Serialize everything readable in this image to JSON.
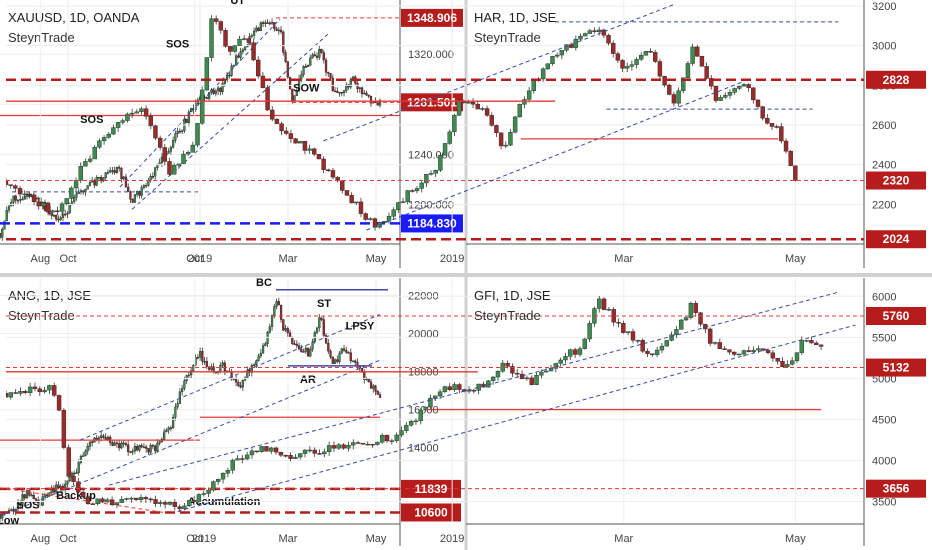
{
  "colors": {
    "up": "#3d8b4f",
    "down": "#9b2a2a",
    "dark_red": "#b71c1c",
    "red": "#e53935",
    "blue": "#3949ab",
    "blue_light": "#5c6bc0",
    "axis_text": "#444444",
    "grid": "#eeeeee",
    "divider": "#d0d0d0"
  },
  "chart_data": [
    {
      "type": "candlestick",
      "symbol_line": "XAUUSD, 1D, OANDA",
      "watermark": "SteynTrade",
      "x_labels": [
        {
          "t": 0.17,
          "label": "Oct"
        },
        {
          "t": 0.5,
          "label": "2019"
        },
        {
          "t": 0.72,
          "label": "Mar"
        },
        {
          "t": 0.94,
          "label": "May"
        }
      ],
      "y_ticks": [
        1200,
        1240,
        1280,
        1320
      ],
      "y_tick_labels": [
        "1200.000",
        "1240.000",
        "1280.000",
        "1320.000"
      ],
      "ylim": [
        1170,
        1360
      ],
      "price_tags": [
        {
          "label": "1348.906",
          "value": 1348.906,
          "color": "#b71c1c"
        },
        {
          "label": "1281.501",
          "value": 1281.501,
          "color": "#b71c1c"
        },
        {
          "label": "1184.830",
          "value": 1184.83,
          "color": "#1a1aff"
        }
      ],
      "anchors": [
        [
          0,
          1177
        ],
        [
          0.03,
          1204
        ],
        [
          0.08,
          1208
        ],
        [
          0.15,
          1186
        ],
        [
          0.2,
          1210
        ],
        [
          0.28,
          1228
        ],
        [
          0.3,
          1226
        ],
        [
          0.33,
          1203
        ],
        [
          0.38,
          1222
        ],
        [
          0.42,
          1244
        ],
        [
          0.5,
          1285
        ],
        [
          0.55,
          1291
        ],
        [
          0.6,
          1323
        ],
        [
          0.66,
          1345
        ],
        [
          0.7,
          1340
        ],
        [
          0.73,
          1283
        ],
        [
          0.76,
          1310
        ],
        [
          0.8,
          1322
        ],
        [
          0.84,
          1286
        ],
        [
          0.88,
          1300
        ],
        [
          0.91,
          1286
        ],
        [
          0.95,
          1280
        ]
      ],
      "lines": [
        {
          "y": 1184.83,
          "x0": 0,
          "x1": 1,
          "color": "#1a1aff",
          "width": 2.5,
          "dash": "10,5"
        },
        {
          "y": 1271,
          "x0": 0,
          "x1": 1,
          "color": "#e53935",
          "width": 1.3
        },
        {
          "y": 1348.906,
          "x0": 0.69,
          "x1": 1,
          "color": "#e53935",
          "width": 1,
          "dash": "4,3"
        },
        {
          "y": 1281.501,
          "x0": 0.73,
          "x1": 1,
          "color": "#e53935",
          "width": 1,
          "dash": "4,3"
        },
        {
          "y": 1210,
          "x0": 0.03,
          "x1": 0.5,
          "color": "#3949ab",
          "width": 1,
          "dash": "4,3"
        }
      ],
      "diagonals": [
        {
          "x1": 0.3,
          "y1": 1214,
          "x2": 0.7,
          "y2": 1348,
          "color": "#3949ab",
          "dash": "4,3"
        },
        {
          "x1": 0.33,
          "y1": 1196,
          "x2": 0.82,
          "y2": 1336,
          "color": "#3949ab",
          "dash": "4,3"
        }
      ],
      "labels": []
    },
    {
      "type": "candlestick",
      "symbol_line": "HAR, 1D, JSE",
      "watermark": "SteynTrade",
      "x_labels": [
        {
          "t": 0.04,
          "label": "Aug"
        },
        {
          "t": 0.22,
          "label": "Oct"
        },
        {
          "t": 0.52,
          "label": "2019"
        },
        {
          "t": 0.72,
          "label": "Mar"
        },
        {
          "t": 0.92,
          "label": "May"
        }
      ],
      "y_ticks": [
        2200,
        2400,
        2600,
        2800,
        3000,
        3200
      ],
      "y_tick_labels": [
        "2200",
        "2400",
        "2600",
        "2800",
        "3000",
        "3200"
      ],
      "ylim": [
        2010,
        3210
      ],
      "price_tags": [
        {
          "label": "2828",
          "value": 2828,
          "color": "#b71c1c"
        },
        {
          "label": "2320",
          "value": 2320,
          "color": "#b71c1c"
        },
        {
          "label": "2024",
          "value": 2024,
          "color": "#b71c1c"
        }
      ],
      "anchors": [
        [
          0,
          2320
        ],
        [
          0.03,
          2220
        ],
        [
          0.06,
          2150
        ],
        [
          0.09,
          2400
        ],
        [
          0.13,
          2620
        ],
        [
          0.16,
          2700
        ],
        [
          0.19,
          2360
        ],
        [
          0.22,
          2500
        ],
        [
          0.24,
          3150
        ],
        [
          0.26,
          2980
        ],
        [
          0.28,
          3050
        ],
        [
          0.31,
          2620
        ],
        [
          0.34,
          2520
        ],
        [
          0.38,
          2350
        ],
        [
          0.43,
          2080
        ],
        [
          0.46,
          2220
        ],
        [
          0.5,
          2380
        ],
        [
          0.53,
          2720
        ],
        [
          0.56,
          2660
        ],
        [
          0.58,
          2480
        ],
        [
          0.6,
          2700
        ],
        [
          0.63,
          2920
        ],
        [
          0.66,
          3010
        ],
        [
          0.69,
          3100
        ],
        [
          0.72,
          2880
        ],
        [
          0.75,
          2980
        ],
        [
          0.78,
          2700
        ],
        [
          0.8,
          2980
        ],
        [
          0.83,
          2720
        ],
        [
          0.86,
          2820
        ],
        [
          0.88,
          2640
        ],
        [
          0.9,
          2580
        ],
        [
          0.92,
          2340
        ]
      ],
      "lines": [
        {
          "y": 2828,
          "x0": 0,
          "x1": 1,
          "color": "#b71c1c",
          "width": 2.5,
          "dash": "10,5"
        },
        {
          "y": 2024,
          "x0": 0,
          "x1": 1,
          "color": "#b71c1c",
          "width": 2.5,
          "dash": "10,5"
        },
        {
          "y": 2320,
          "x0": 0,
          "x1": 1,
          "color": "#e53935",
          "width": 1,
          "dash": "4,3"
        },
        {
          "y": 2720,
          "x0": 0,
          "x1": 0.64,
          "color": "#e53935",
          "width": 1.3
        },
        {
          "y": 2530,
          "x0": 0.6,
          "x1": 0.9,
          "color": "#e53935",
          "width": 1.3
        },
        {
          "y": 3120,
          "x0": 0.64,
          "x1": 0.97,
          "color": "#3949ab",
          "width": 1,
          "dash": "4,3"
        },
        {
          "y": 2680,
          "x0": 0.7,
          "x1": 0.94,
          "color": "#3949ab",
          "width": 1,
          "dash": "4,3"
        }
      ],
      "diagonals": [
        {
          "x1": 0.37,
          "y1": 2520,
          "x2": 0.78,
          "y2": 3210,
          "color": "#3949ab",
          "dash": "4,3"
        },
        {
          "x1": 0.42,
          "y1": 2070,
          "x2": 0.86,
          "y2": 2820,
          "color": "#3949ab",
          "dash": "4,3"
        }
      ],
      "labels": [
        {
          "text": "SOS",
          "t": 0.1,
          "v": 2610
        },
        {
          "text": "SOS",
          "t": 0.2,
          "v": 2990
        },
        {
          "text": "UT",
          "t": 0.27,
          "v": 3210
        },
        {
          "text": "SOW",
          "t": 0.35,
          "v": 2770
        }
      ]
    },
    {
      "type": "candlestick",
      "symbol_line": "ANG, 1D, JSE",
      "watermark": "SteynTrade",
      "x_labels": [
        {
          "t": 0.17,
          "label": "Oct"
        },
        {
          "t": 0.51,
          "label": "2019"
        },
        {
          "t": 0.72,
          "label": "Mar"
        },
        {
          "t": 0.94,
          "label": "May"
        }
      ],
      "y_ticks": [
        14000,
        16000,
        18000,
        20000,
        22000
      ],
      "y_tick_labels": [
        "14000",
        "16000",
        "18000",
        "20000",
        "22000"
      ],
      "ylim": [
        10100,
        22600
      ],
      "price_tags": [
        {
          "label": "11839",
          "value": 11839,
          "color": "#b71c1c"
        },
        {
          "label": "10600",
          "value": 10600,
          "color": "#b71c1c"
        }
      ],
      "anchors": [
        [
          0,
          10500
        ],
        [
          0.04,
          10900
        ],
        [
          0.07,
          11700
        ],
        [
          0.1,
          11100
        ],
        [
          0.13,
          11900
        ],
        [
          0.16,
          11800
        ],
        [
          0.19,
          12800
        ],
        [
          0.22,
          14200
        ],
        [
          0.25,
          14600
        ],
        [
          0.28,
          14300
        ],
        [
          0.32,
          14000
        ],
        [
          0.35,
          13900
        ],
        [
          0.39,
          14000
        ],
        [
          0.43,
          15300
        ],
        [
          0.46,
          17600
        ],
        [
          0.5,
          18900
        ],
        [
          0.53,
          18100
        ],
        [
          0.56,
          18300
        ],
        [
          0.6,
          17200
        ],
        [
          0.63,
          18400
        ],
        [
          0.66,
          19300
        ],
        [
          0.69,
          21900
        ],
        [
          0.71,
          20200
        ],
        [
          0.74,
          19300
        ],
        [
          0.77,
          19000
        ],
        [
          0.8,
          20900
        ],
        [
          0.83,
          18300
        ],
        [
          0.86,
          19200
        ],
        [
          0.88,
          18500
        ],
        [
          0.9,
          18200
        ],
        [
          0.92,
          17400
        ],
        [
          0.95,
          16800
        ]
      ],
      "lines": [
        {
          "y": 11839,
          "x0": 0,
          "x1": 1,
          "color": "#b71c1c",
          "width": 2.5,
          "dash": "10,5"
        },
        {
          "y": 10600,
          "x0": 0,
          "x1": 1,
          "color": "#b71c1c",
          "width": 2.5,
          "dash": "10,5"
        },
        {
          "y": 14400,
          "x0": 0,
          "x1": 0.5,
          "color": "#e53935",
          "width": 1.3
        },
        {
          "y": 15600,
          "x0": 0.5,
          "x1": 0.95,
          "color": "#e53935",
          "width": 1.3
        },
        {
          "y": 22300,
          "x0": 0.69,
          "x1": 0.97,
          "color": "#3949ab",
          "width": 1.5
        },
        {
          "y": 18300,
          "x0": 0.72,
          "x1": 0.93,
          "color": "#3949ab",
          "width": 1.5
        }
      ],
      "diagonals": [
        {
          "x1": 0,
          "y1": 10400,
          "x2": 0.95,
          "y2": 18600,
          "color": "#3949ab",
          "dash": "4,3"
        },
        {
          "x1": 0.2,
          "y1": 14400,
          "x2": 0.95,
          "y2": 21000,
          "color": "#3949ab",
          "dash": "4,3"
        },
        {
          "x1": 0,
          "y1": 11900,
          "x2": 0.41,
          "y2": 10600,
          "color": "#e53935",
          "dash": "4,3"
        }
      ],
      "labels": [
        {
          "text": "BC",
          "t": 0.66,
          "v": 22500
        },
        {
          "text": "ST",
          "t": 0.81,
          "v": 21400
        },
        {
          "text": "LPSY",
          "t": 0.9,
          "v": 20200
        },
        {
          "text": "AR",
          "t": 0.77,
          "v": 17400
        },
        {
          "text": "SOS",
          "t": 0.07,
          "v": 10800
        },
        {
          "text": "Backup",
          "t": 0.19,
          "v": 11300
        },
        {
          "text": "Accumulation",
          "t": 0.56,
          "v": 11000
        },
        {
          "text": "Low",
          "t": 0.02,
          "v": 10000
        }
      ]
    },
    {
      "type": "candlestick",
      "symbol_line": "GFI, 1D, JSE",
      "watermark": "SteynTrade",
      "x_labels": [
        {
          "t": 0.04,
          "label": "Aug"
        },
        {
          "t": 0.22,
          "label": "Oct"
        },
        {
          "t": 0.52,
          "label": "2019"
        },
        {
          "t": 0.72,
          "label": "Mar"
        },
        {
          "t": 0.92,
          "label": "May"
        }
      ],
      "y_ticks": [
        3500,
        4000,
        4500,
        5000,
        5500,
        6000
      ],
      "y_tick_labels": [
        "3500",
        "4000",
        "4500",
        "5000",
        "5500",
        "6000"
      ],
      "ylim": [
        3250,
        6150
      ],
      "price_tags": [
        {
          "label": "5760",
          "value": 5760,
          "color": "#b71c1c"
        },
        {
          "label": "5132",
          "value": 5132,
          "color": "#b71c1c"
        },
        {
          "label": "3656",
          "value": 3656,
          "color": "#b71c1c"
        }
      ],
      "anchors": [
        [
          0,
          4820
        ],
        [
          0.03,
          4850
        ],
        [
          0.05,
          4880
        ],
        [
          0.06,
          4760
        ],
        [
          0.07,
          3900
        ],
        [
          0.09,
          3530
        ],
        [
          0.12,
          3470
        ],
        [
          0.15,
          3540
        ],
        [
          0.18,
          3480
        ],
        [
          0.21,
          3450
        ],
        [
          0.24,
          3720
        ],
        [
          0.27,
          4020
        ],
        [
          0.3,
          4160
        ],
        [
          0.33,
          4050
        ],
        [
          0.36,
          4100
        ],
        [
          0.39,
          4170
        ],
        [
          0.42,
          4220
        ],
        [
          0.45,
          4290
        ],
        [
          0.48,
          4520
        ],
        [
          0.51,
          4910
        ],
        [
          0.55,
          4880
        ],
        [
          0.58,
          5160
        ],
        [
          0.61,
          4950
        ],
        [
          0.64,
          5200
        ],
        [
          0.67,
          5380
        ],
        [
          0.69,
          5950
        ],
        [
          0.71,
          5700
        ],
        [
          0.73,
          5500
        ],
        [
          0.75,
          5300
        ],
        [
          0.78,
          5550
        ],
        [
          0.8,
          5900
        ],
        [
          0.82,
          5450
        ],
        [
          0.85,
          5250
        ],
        [
          0.88,
          5400
        ],
        [
          0.91,
          5150
        ],
        [
          0.93,
          5480
        ],
        [
          0.95,
          5420
        ]
      ],
      "lines": [
        {
          "y": 5760,
          "x0": 0,
          "x1": 1,
          "color": "#e53935",
          "width": 1,
          "dash": "4,3"
        },
        {
          "y": 5132,
          "x0": 0,
          "x1": 1,
          "color": "#e53935",
          "width": 1,
          "dash": "4,3"
        },
        {
          "y": 3656,
          "x0": 0,
          "x1": 1,
          "color": "#e53935",
          "width": 1,
          "dash": "4,3"
        },
        {
          "y": 5080,
          "x0": 0,
          "x1": 0.55,
          "color": "#e53935",
          "width": 1.3
        },
        {
          "y": 4620,
          "x0": 0.49,
          "x1": 0.95,
          "color": "#e53935",
          "width": 1.3
        }
      ],
      "diagonals": [
        {
          "x1": 0.12,
          "y1": 3700,
          "x2": 0.97,
          "y2": 6050,
          "color": "#3949ab",
          "dash": "4,3"
        },
        {
          "x1": 0.2,
          "y1": 3380,
          "x2": 0.99,
          "y2": 5650,
          "color": "#3949ab",
          "dash": "4,3"
        }
      ],
      "labels": []
    }
  ]
}
